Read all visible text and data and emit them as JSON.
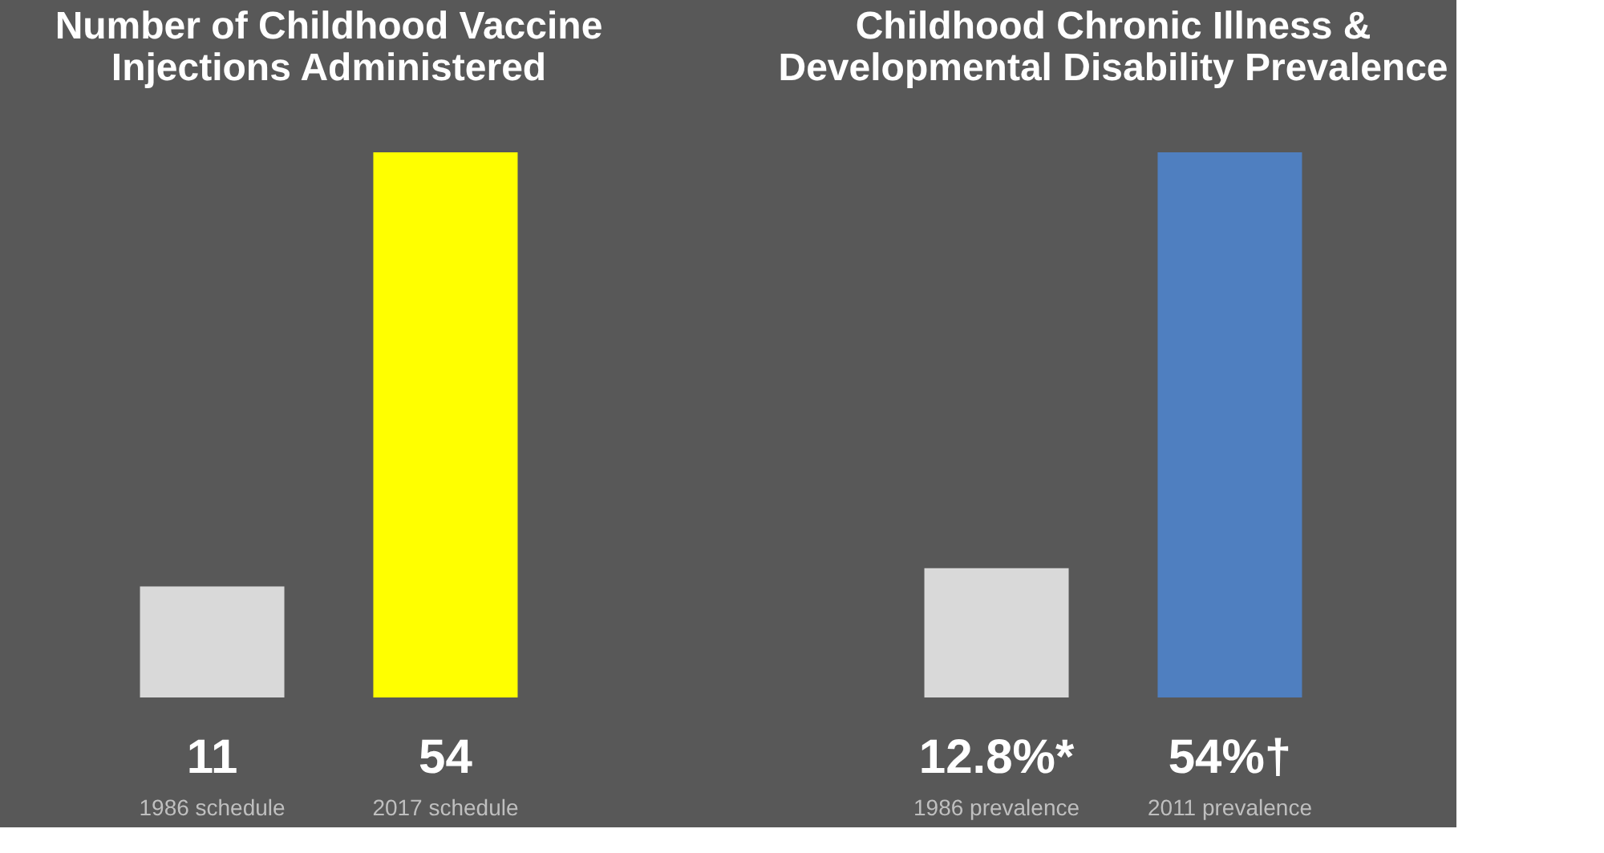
{
  "chart_data": [
    {
      "type": "bar",
      "title": "Number of Childhood Vaccine\nInjections Administered",
      "categories": [
        "1986 schedule",
        "2017 schedule"
      ],
      "values": [
        11,
        54
      ],
      "colors": [
        "#d9d9d9",
        "#ffff00"
      ],
      "value_labels": [
        "11",
        "54"
      ]
    },
    {
      "type": "bar",
      "title": "Childhood Chronic Illness &\nDevelopmental Disability Prevalence",
      "categories": [
        "1986 prevalence",
        "2011 prevalence"
      ],
      "values": [
        12.8,
        54
      ],
      "colors": [
        "#d9d9d9",
        "#4f7fc0"
      ],
      "value_labels": [
        "12.8%*",
        "54%†"
      ]
    }
  ]
}
